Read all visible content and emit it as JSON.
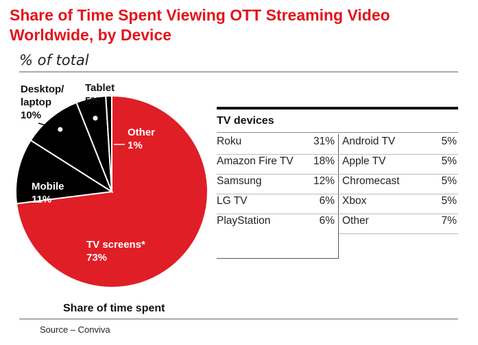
{
  "title": "Share of Time Spent Viewing OTT Streaming Video Worldwide, by Device",
  "subtitle": "% of total",
  "source": "Source – Conviva",
  "chart_data": [
    {
      "type": "pie",
      "xlabel": "Share of time spent",
      "slices": [
        {
          "label": "TV screens*",
          "value": 73,
          "value_label": "73%",
          "color": "#e01e26"
        },
        {
          "label": "Mobile",
          "value": 11,
          "value_label": "11%",
          "color": "#000000"
        },
        {
          "label": "Desktop/ laptop",
          "value": 10,
          "value_label": "10%",
          "color": "#000000"
        },
        {
          "label": "Tablet",
          "value": 5,
          "value_label": "5%",
          "color": "#000000"
        },
        {
          "label": "Other",
          "value": 1,
          "value_label": "1%",
          "color": "#000000"
        }
      ]
    },
    {
      "type": "table",
      "title": "TV devices",
      "left_column": [
        {
          "name": "Roku",
          "value": "31%"
        },
        {
          "name": "Amazon Fire TV",
          "value": "18%"
        },
        {
          "name": "Samsung",
          "value": "12%"
        },
        {
          "name": "LG TV",
          "value": "6%"
        },
        {
          "name": "PlayStation",
          "value": "6%"
        }
      ],
      "right_column": [
        {
          "name": "Android TV",
          "value": "5%"
        },
        {
          "name": "Apple TV",
          "value": "5%"
        },
        {
          "name": "Chromecast",
          "value": "5%"
        },
        {
          "name": "Xbox",
          "value": "5%"
        },
        {
          "name": "Other",
          "value": "7%"
        }
      ]
    }
  ]
}
